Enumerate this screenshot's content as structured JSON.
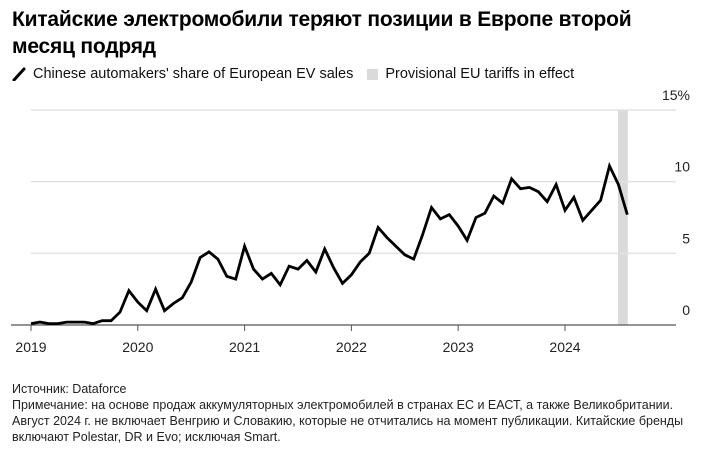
{
  "title": "Китайские электромобили теряют позиции в Европе второй месяц подряд",
  "legend": {
    "line_label": "Chinese automakers' share of European EV sales",
    "band_label": "Provisional EU tariffs in effect",
    "line_icon": "diagonal-line-icon",
    "band_icon": "gray-square-swatch"
  },
  "colors": {
    "line": "#000000",
    "band": "#dadada",
    "grid": "#e2e2e2",
    "axis": "#555555"
  },
  "footer": {
    "source": "Источник: Dataforce",
    "note": "Примечание: на основе продаж аккумуляторных электромобилей в странах ЕС и ЕАСТ, а также Великобритании. Август 2024 г. не включает Венгрию и Словакию, которые не отчитались на момент публикации. Китайские бренды включают Polestar, DR и Evo; исключая Smart."
  },
  "chart_data": {
    "type": "line",
    "title": "Китайские электромобили теряют позиции в Европе второй месяц подряд",
    "xlabel": "",
    "ylabel": "",
    "x_start": "2019-01",
    "x_end": "2024-08",
    "x_frequency": "monthly",
    "x_ticks": [
      "2019",
      "2020",
      "2021",
      "2022",
      "2023",
      "2024"
    ],
    "y_ticks": [
      "0",
      "5",
      "10",
      "15%"
    ],
    "y_tick_values": [
      0,
      5,
      10,
      15
    ],
    "ylim": [
      0,
      15
    ],
    "y_axis_side": "right",
    "grid": true,
    "legend_position": "top-left",
    "series": [
      {
        "name": "Chinese automakers' share of European EV sales",
        "unit": "%",
        "values": [
          0.1,
          0.2,
          0.1,
          0.1,
          0.2,
          0.2,
          0.2,
          0.1,
          0.3,
          0.3,
          0.9,
          2.4,
          1.6,
          1.0,
          2.5,
          1.0,
          1.5,
          1.9,
          3.0,
          4.7,
          5.1,
          4.6,
          3.4,
          3.2,
          5.5,
          3.9,
          3.2,
          3.6,
          2.8,
          4.1,
          3.9,
          4.5,
          3.7,
          5.3,
          4.0,
          2.9,
          3.5,
          4.4,
          5.0,
          6.8,
          6.1,
          5.5,
          4.9,
          4.6,
          6.3,
          8.2,
          7.4,
          7.7,
          6.9,
          5.9,
          7.5,
          7.8,
          9.0,
          8.5,
          10.2,
          9.5,
          9.6,
          9.3,
          8.6,
          9.8,
          8.0,
          8.9,
          7.3,
          8.0,
          8.7,
          11.1,
          9.8,
          7.7
        ]
      }
    ],
    "annotations": [
      {
        "type": "shaded-band",
        "label": "Provisional EU tariffs in effect",
        "from": "2024-07",
        "to": "2024-08"
      }
    ]
  }
}
